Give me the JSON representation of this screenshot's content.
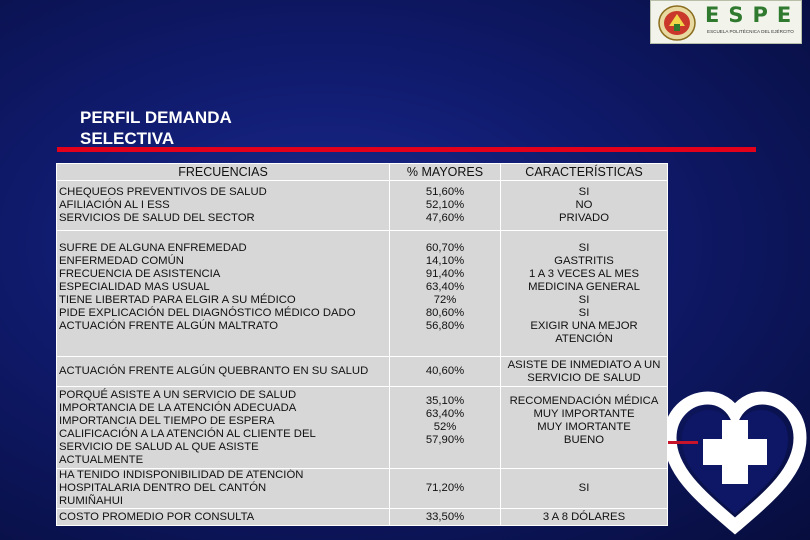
{
  "logo": {
    "brand": "ESPE",
    "subtitle": "ESCUELA POLITÉCNICA DEL EJÉRCITO",
    "colors": {
      "brand_green": "#2f7a2e"
    }
  },
  "title": {
    "line1": "PERFIL DEMANDA",
    "line2": "SELECTIVA"
  },
  "decor": {
    "accent_red": "#e3001b",
    "heart_icon": "heart-medical-cross-icon"
  },
  "table": {
    "headers": [
      "FRECUENCIAS",
      "% MAYORES",
      "CARACTERÍSTICAS"
    ],
    "groups": [
      {
        "rows": [
          {
            "label": "CHEQUEOS PREVENTIVOS DE SALUD",
            "pct": "51,60%",
            "char": "SI"
          },
          {
            "label": "AFILIACIÓN AL I ESS",
            "pct": "52,10%",
            "char": "NO"
          },
          {
            "label": "SERVICIOS DE SALUD DEL SECTOR",
            "pct": "47,60%",
            "char": "PRIVADO"
          }
        ]
      },
      {
        "rows": [
          {
            "label": "SUFRE DE ALGUNA ENFREMEDAD",
            "pct": "60,70%",
            "char": "SI"
          },
          {
            "label": "ENFERMEDAD COMÚN",
            "pct": "14,10%",
            "char": "GASTRITIS"
          },
          {
            "label": "FRECUENCIA DE ASISTENCIA",
            "pct": "91,40%",
            "char": "1 A 3 VECES AL MES"
          },
          {
            "label": "ESPECIALIDAD MAS USUAL",
            "pct": "63,40%",
            "char": "MEDICINA GENERAL"
          },
          {
            "label": "TIENE LIBERTAD PARA ELGIR A SU MÉDICO",
            "pct": "72%",
            "char": "SI"
          },
          {
            "label": "PIDE EXPLICACIÓN DEL DIAGNÓSTICO MÉDICO DADO",
            "pct": "80,60%",
            "char": "SI"
          },
          {
            "label": "ACTUACIÓN FRENTE ALGÚN MALTRATO",
            "pct": "56,80%",
            "char": "EXIGIR UNA MEJOR ATENCIÓN"
          }
        ]
      },
      {
        "rows": [
          {
            "label": "ACTUACIÓN FRENTE ALGÚN QUEBRANTO EN SU SALUD",
            "pct": "40,60%",
            "char": "ASISTE DE INMEDIATO A UN SERVICIO DE SALUD"
          }
        ]
      },
      {
        "rows": [
          {
            "label": "PORQUÉ ASISTE A UN SERVICIO DE SALUD",
            "pct": "35,10%",
            "char": "RECOMENDACIÓN MÉDICA"
          },
          {
            "label": "IMPORTANCIA DE LA ATENCIÓN ADECUADA",
            "pct": "63,40%",
            "char": "MUY IMPORTANTE"
          },
          {
            "label": "IMPORTANCIA DEL TIEMPO DE ESPERA",
            "pct": "52%",
            "char": "MUY IMORTANTE"
          },
          {
            "label": "CALIFICACIÓN A LA ATENCIÓN AL CLIENTE DEL SERVICIO DE SALUD AL QUE ASISTE ACTUALMENTE",
            "pct": "57,90%",
            "char": "BUENO"
          }
        ]
      },
      {
        "rows": [
          {
            "label": "HA TENIDO INDISPONIBILIDAD DE ATENCIÓN HOSPITALARIA DENTRO DEL CANTÓN RUMIÑAHUI",
            "pct": "71,20%",
            "char": "SI"
          }
        ]
      },
      {
        "rows": [
          {
            "label": "COSTO PROMEDIO POR CONSULTA",
            "pct": "33,50%",
            "char": "3 A 8 DÓLARES"
          }
        ]
      }
    ]
  }
}
